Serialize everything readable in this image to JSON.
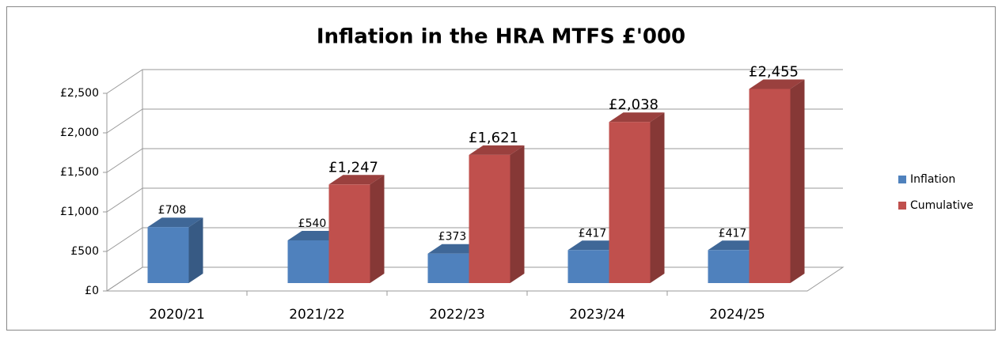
{
  "chart_data": {
    "type": "bar3d",
    "title": "Inflation in the HRA MTFS £'000",
    "categories": [
      "2020/21",
      "2021/22",
      "2022/23",
      "2023/24",
      "2024/25"
    ],
    "series": [
      {
        "name": "Inflation",
        "color": "#4f81bd",
        "values": [
          708,
          540,
          373,
          417,
          417
        ],
        "value_labels": [
          "£708",
          "£540",
          "£373",
          "£417",
          "£417"
        ]
      },
      {
        "name": "Cumulative",
        "color": "#c0504d",
        "values": [
          null,
          1247,
          1621,
          2038,
          2455
        ],
        "value_labels": [
          null,
          "£1,247",
          "£1,621",
          "£2,038",
          "£2,455"
        ]
      }
    ],
    "ylim": [
      0,
      2500
    ],
    "yticks": [
      {
        "value": 0,
        "label": "£0"
      },
      {
        "value": 500,
        "label": "£500"
      },
      {
        "value": 1000,
        "label": "£1,000"
      },
      {
        "value": 1500,
        "label": "£1,500"
      },
      {
        "value": 2000,
        "label": "£2,000"
      },
      {
        "value": 2500,
        "label": "£2,500"
      }
    ],
    "grid": true,
    "legend": "right"
  }
}
